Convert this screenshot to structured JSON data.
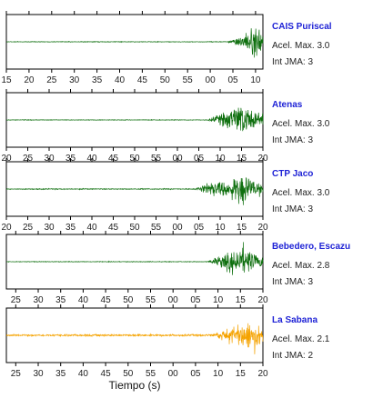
{
  "colors": {
    "station_name": "#1f23d6",
    "axis": "#000000",
    "trace_green": "#0e6f0e",
    "trace_orange": "#f5a300"
  },
  "chart_data": {
    "type": "line",
    "xlabel": "Tiempo (s)",
    "traces": [
      {
        "station": "CAIS Puriscal",
        "acel_label": "Acel. Max. 3.0",
        "int_label": "Int JMA: 3",
        "acel_max": 3.0,
        "int_jma": 3,
        "trace_color": "#0e6f0e",
        "tick_labels": [
          "15",
          "20",
          "25",
          "30",
          "35",
          "40",
          "45",
          "50",
          "55",
          "00",
          "05",
          "10"
        ],
        "tick_labels_at_frame_edges": true,
        "x_range_s": [
          15,
          73
        ],
        "signal_onset_s": 65,
        "peak_time_s": 72,
        "noise_level": 0.02
      },
      {
        "station": "Atenas",
        "acel_label": "Acel. Max. 3.0",
        "int_label": "Int JMA: 3",
        "acel_max": 3.0,
        "int_jma": 3,
        "trace_color": "#0e6f0e",
        "tick_labels": [
          "20",
          "25",
          "30",
          "35",
          "40",
          "45",
          "50",
          "55",
          "00",
          "05",
          "10",
          "15",
          "20"
        ],
        "tick_labels_at_frame_edges": true,
        "x_range_s": [
          20,
          80
        ],
        "signal_onset_s": 67,
        "peak_time_s": 75,
        "noise_level": 0.02
      },
      {
        "station": "CTP Jaco",
        "acel_label": "Acel. Max. 3.0",
        "int_label": "Int JMA: 3",
        "acel_max": 3.0,
        "int_jma": 3,
        "trace_color": "#0e6f0e",
        "tick_labels": [
          "20",
          "25",
          "30",
          "35",
          "40",
          "45",
          "50",
          "55",
          "00",
          "05",
          "10",
          "15",
          "20"
        ],
        "tick_labels_at_frame_edges": true,
        "x_range_s": [
          20,
          80
        ],
        "signal_onset_s": 64,
        "peak_time_s": 75,
        "noise_level": 0.03
      },
      {
        "station": "Bebedero, Escazu",
        "acel_label": "Acel. Max. 2.8",
        "int_label": "Int JMA: 3",
        "acel_max": 2.8,
        "int_jma": 3,
        "trace_color": "#0e6f0e",
        "tick_labels": [
          "25",
          "30",
          "35",
          "40",
          "45",
          "50",
          "55",
          "00",
          "05",
          "10",
          "15",
          "20"
        ],
        "tick_labels_at_frame_edges": false,
        "x_range_s": [
          20,
          80
        ],
        "signal_onset_s": 67,
        "peak_time_s": 75,
        "noise_level": 0.02
      },
      {
        "station": "La Sabana",
        "acel_label": "Acel. Max. 2.1",
        "int_label": "Int JMA: 2",
        "acel_max": 2.1,
        "int_jma": 2,
        "trace_color": "#f5a300",
        "tick_labels": [
          "25",
          "30",
          "35",
          "40",
          "45",
          "50",
          "55",
          "00",
          "05",
          "10",
          "15",
          "20"
        ],
        "tick_labels_at_frame_edges": false,
        "x_range_s": [
          20,
          80
        ],
        "signal_onset_s": 68,
        "peak_time_s": 77,
        "noise_level": 0.06
      }
    ]
  }
}
